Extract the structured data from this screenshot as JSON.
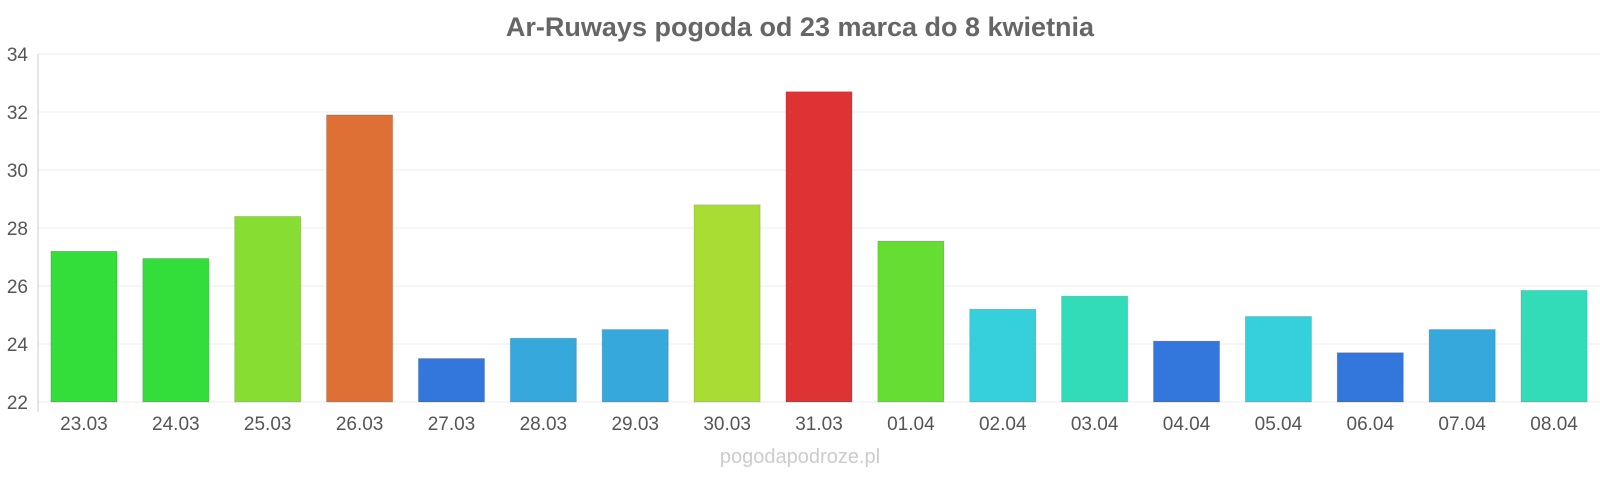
{
  "chart_data": {
    "type": "bar",
    "title": "Ar-Ruways pogoda od 23 marca do 8 kwietnia",
    "xlabel": "",
    "ylabel": "",
    "ylim": [
      22,
      34
    ],
    "yticks": [
      22,
      24,
      26,
      28,
      30,
      32,
      34
    ],
    "grid": true,
    "legend": "none",
    "categories": [
      "23.03",
      "24.03",
      "25.03",
      "26.03",
      "27.03",
      "28.03",
      "29.03",
      "30.03",
      "31.03",
      "01.04",
      "02.04",
      "03.04",
      "04.04",
      "05.04",
      "06.04",
      "07.04",
      "08.04"
    ],
    "values": [
      27.2,
      26.95,
      28.4,
      31.9,
      23.5,
      24.2,
      24.5,
      28.8,
      32.7,
      27.55,
      25.2,
      25.65,
      24.1,
      24.95,
      23.7,
      24.5,
      25.85
    ],
    "colors": [
      "#33dd3a",
      "#33dd3a",
      "#88dd33",
      "#df7035",
      "#3377dd",
      "#37a8dc",
      "#37a8dc",
      "#aadd33",
      "#dd3335",
      "#66dd33",
      "#36cfdc",
      "#33dcb9",
      "#3377dd",
      "#36cfdc",
      "#3377dd",
      "#37a8dc",
      "#33dcb9"
    ]
  },
  "watermark": "pogodapodroze.pl"
}
